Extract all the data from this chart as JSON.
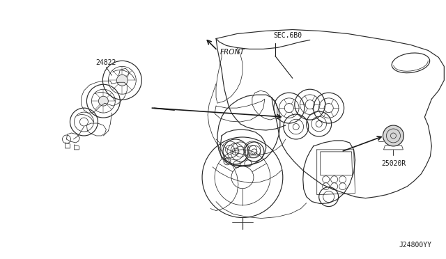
{
  "bg_color": "#ffffff",
  "fig_width": 6.4,
  "fig_height": 3.72,
  "dpi": 100,
  "labels": {
    "part1": "24822",
    "part2": "25020R",
    "sec": "SEC.6B0",
    "front": "FRONT",
    "diagram_id": "J24800YY"
  },
  "font_size": 7.0,
  "line_color": "#2a2a2a",
  "arrow_color": "#1a1a1a",
  "lw_thin": 0.55,
  "lw_med": 0.85,
  "lw_thick": 1.3
}
